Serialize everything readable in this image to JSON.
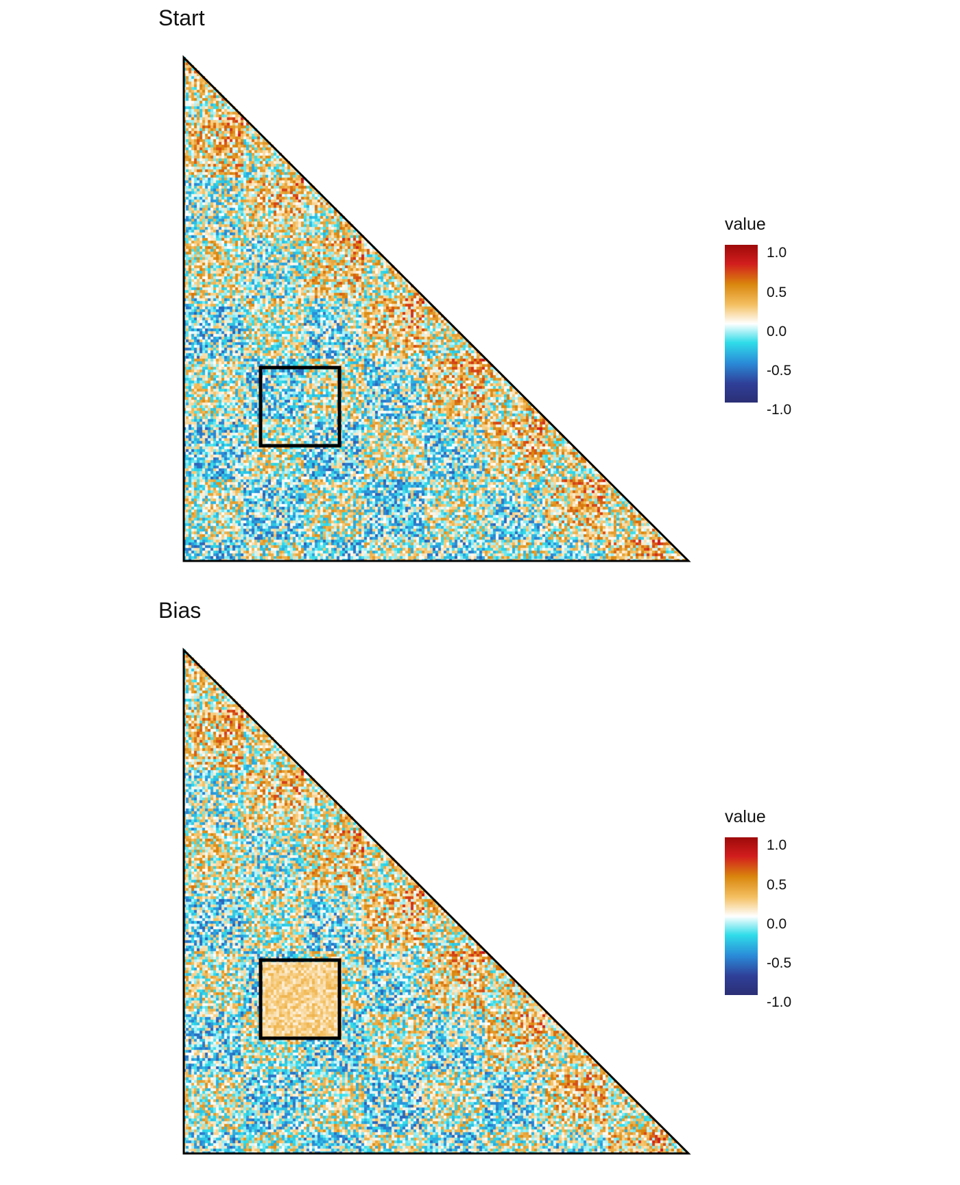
{
  "chart_data": [
    {
      "type": "heatmap",
      "title": "Start",
      "shape": "lower-triangle",
      "highlight": "square box outline in lower-left region",
      "colorbar": {
        "title": "value",
        "range": [
          -1.0,
          1.0
        ],
        "ticks": [
          "1.0",
          "0.5",
          "0.0",
          "-0.5",
          "-1.0"
        ]
      },
      "box_region_bias": "mixed (near 0)"
    },
    {
      "type": "heatmap",
      "title": "Bias",
      "shape": "lower-triangle",
      "highlight": "square box outline in lower-left region",
      "colorbar": {
        "title": "value",
        "range": [
          -1.0,
          1.0
        ],
        "ticks": [
          "1.0",
          "0.5",
          "0.0",
          "-0.5",
          "-1.0"
        ]
      },
      "box_region_bias": "positive (light orange)"
    }
  ],
  "colors": {
    "high": "#b2182b",
    "mid_high": "#e69a1e",
    "zero": "#ffffff",
    "mid_low": "#26c6e0",
    "low": "#2f3f98",
    "outline": "#000000"
  }
}
